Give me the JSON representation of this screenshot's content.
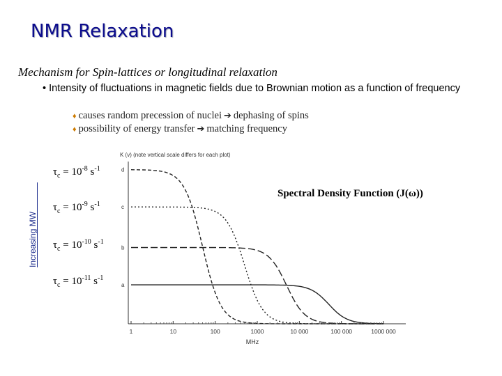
{
  "slide": {
    "title": "NMR Relaxation",
    "subtitle": "Mechanism for Spin-lattices or longitudinal relaxation",
    "bullet": "• Intensity of fluctuations in magnetic fields due to Brownian motion as a function of frequency",
    "sub_items": [
      {
        "text_a": "causes random precession of nuclei",
        "text_b": "dephasing of spins"
      },
      {
        "text_a": "possibility of energy transfer",
        "text_b": "matching frequency"
      }
    ],
    "side_label": "Increasing MW",
    "sdf_label": "Spectral Density Function (J(ω))",
    "tau_labels": [
      {
        "sym": "τ",
        "sub": "c",
        "text": " = 10",
        "exp": "-8",
        "unit": " s",
        "unit_exp": "-1"
      },
      {
        "sym": "τ",
        "sub": "c",
        "text": " = 10",
        "exp": "-9",
        "unit": " s",
        "unit_exp": "-1"
      },
      {
        "sym": "τ",
        "sub": "c",
        "text": " = 10",
        "exp": "-10",
        "unit": " s",
        "unit_exp": "-1"
      },
      {
        "sym": "τ",
        "sub": "c",
        "text": " = 10",
        "exp": "-11",
        "unit": " s",
        "unit_exp": "-1"
      }
    ],
    "diamond_color": "#cc7a00",
    "title_color": "#0b0b8c"
  },
  "plot": {
    "ylabel": "K (v) (note vertical scale differs for each plot)",
    "curve_letters": [
      "d",
      "c",
      "b",
      "a"
    ],
    "xlabel": "MHz",
    "xticks": [
      "1",
      "10",
      "100",
      "1000",
      "10 000",
      "100 000",
      "1000 000"
    ],
    "curves": [
      {
        "letter": "d",
        "style": "short-dash",
        "plateau_level": 0.95,
        "rolloff_decade": 1.7
      },
      {
        "letter": "c",
        "style": "dot",
        "plateau_level": 0.72,
        "rolloff_decade": 2.7
      },
      {
        "letter": "b",
        "style": "long-dash",
        "plateau_level": 0.47,
        "rolloff_decade": 3.7
      },
      {
        "letter": "a",
        "style": "solid",
        "plateau_level": 0.24,
        "rolloff_decade": 4.7
      }
    ],
    "decade_range": [
      0,
      6
    ]
  }
}
